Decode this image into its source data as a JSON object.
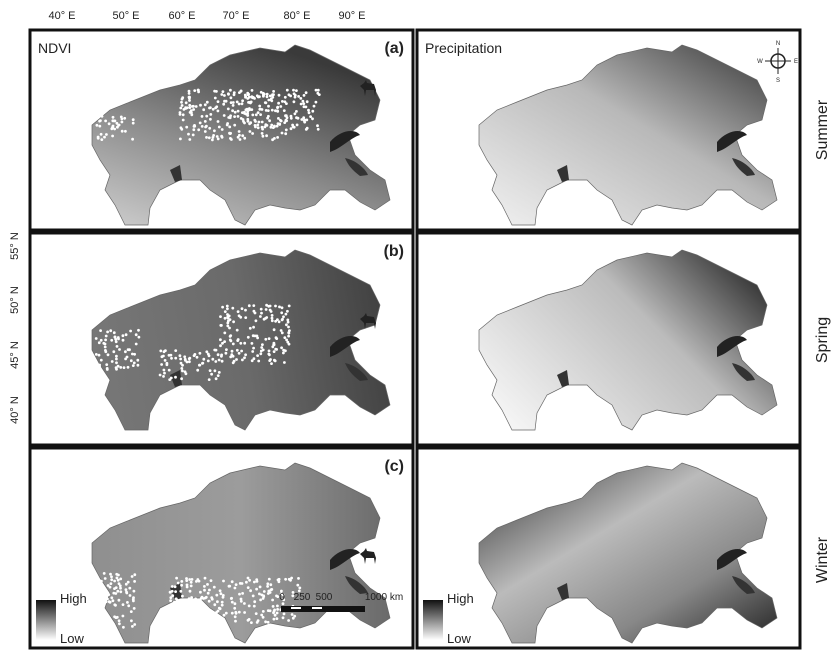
{
  "top_axis": {
    "labels": [
      "40° E",
      "50° E",
      "60° E",
      "70° E",
      "80° E",
      "90° E"
    ]
  },
  "left_axis": {
    "labels": [
      "55° N",
      "50° N",
      "45° N",
      "40° N"
    ]
  },
  "columns": [
    {
      "title": "NDVI"
    },
    {
      "title": "Precipitation"
    }
  ],
  "rows": [
    {
      "panel": "(a)",
      "season": "Summer"
    },
    {
      "panel": "(b)",
      "season": "Spring"
    },
    {
      "panel": "(c)",
      "season": "Winter"
    }
  ],
  "legend": {
    "high": "High",
    "low": "Low"
  },
  "scale_bar": {
    "labels": [
      "0",
      "250",
      "500",
      "1000 km"
    ]
  },
  "compass": {
    "n": "N",
    "e": "E",
    "s": "S",
    "w": "W"
  }
}
